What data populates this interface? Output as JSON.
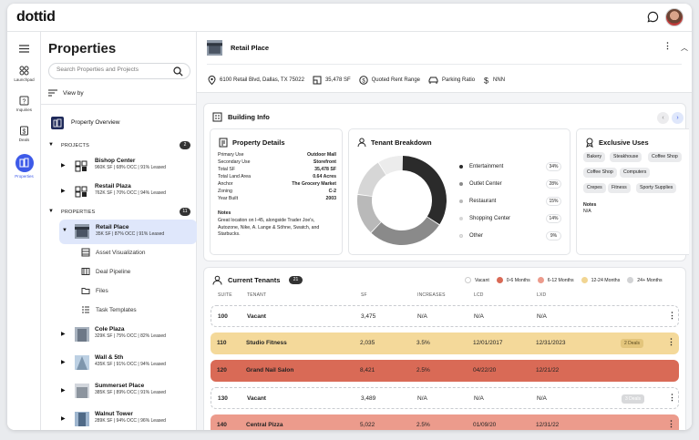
{
  "app": {
    "logo": "dottid"
  },
  "rail": {
    "items": [
      {
        "label": "Launchpad",
        "icon": "launchpad-icon"
      },
      {
        "label": "Inquiries",
        "icon": "inquiries-icon"
      },
      {
        "label": "Deals",
        "icon": "deals-icon"
      },
      {
        "label": "Properties",
        "icon": "properties-icon",
        "active": true
      }
    ]
  },
  "sidebar": {
    "title": "Properties",
    "search_placeholder": "Search Properties and Projects",
    "view_by": "View by",
    "overview": "Property Overview",
    "projects_label": "PROJECTS",
    "projects_count": "2",
    "projects": [
      {
        "name": "Bishop Center",
        "sub": "960K SF | 68% OCC | 91% Leased"
      },
      {
        "name": "Restail Plaza",
        "sub": "762K SF | 70% OCC | 94% Leased"
      }
    ],
    "properties_label": "PROPERTIES",
    "properties_count": "11",
    "selected": {
      "name": "Retail Place",
      "sub": "35K SF | 87% OCC | 91% Leased"
    },
    "subitems": [
      "Asset Visualization",
      "Deal Pipeline",
      "Files",
      "Task Templates"
    ],
    "properties": [
      {
        "name": "Cole Plaza",
        "sub": "329K SF | 75% OCC | 82% Leased"
      },
      {
        "name": "Wall & 5th",
        "sub": "435K SF | 91% OCC | 94% Leased"
      },
      {
        "name": "Summerset Place",
        "sub": "385K SF | 89% OCC | 91% Leased"
      },
      {
        "name": "Walnut Tower",
        "sub": "289K SF | 94% OCC | 96% Leased"
      }
    ]
  },
  "header": {
    "title": "Retail Place",
    "address": "6100 Retail Blvd, Dallas, TX 75022",
    "sf": "35,478 SF",
    "rent": "Quoted Rent Range",
    "parking": "Parking Ratio",
    "nnn": "NNN"
  },
  "building_info": {
    "title": "Building Info",
    "property_details": {
      "title": "Property Details",
      "rows": [
        {
          "k": "Primary Use",
          "v": "Outdoor Mall"
        },
        {
          "k": "Secondary Use",
          "v": "Storefront"
        },
        {
          "k": "Total SF",
          "v": "35,478 SF"
        },
        {
          "k": "Total Land Area",
          "v": "0.64 Acres"
        },
        {
          "k": "Anchor",
          "v": "The Grocery Market"
        },
        {
          "k": "Zoning",
          "v": "C-2"
        },
        {
          "k": "Year Built",
          "v": "2003"
        }
      ],
      "notes_label": "Notes",
      "notes": "Great location on I-45, alongside Trader Joe's, Autozone, Nike, A. Lange & Söhne, Swatch, and Starbucks."
    },
    "tenant_breakdown": {
      "title": "Tenant Breakdown",
      "rows": [
        {
          "name": "Entertainment",
          "pct": "34%",
          "value": 34,
          "color": "#2b2b2b"
        },
        {
          "name": "Outlet Center",
          "pct": "28%",
          "value": 28,
          "color": "#8a8a8a"
        },
        {
          "name": "Restaurant",
          "pct": "15%",
          "value": 15,
          "color": "#b9b9b9"
        },
        {
          "name": "Shopping Center",
          "pct": "14%",
          "value": 14,
          "color": "#d6d6d6"
        },
        {
          "name": "Other",
          "pct": "9%",
          "value": 9,
          "color": "#ececec"
        }
      ]
    },
    "exclusive_uses": {
      "title": "Exclusive Uses",
      "tags": [
        "Bakery",
        "Steakhouse",
        "Coffee Shop",
        "Coffee Shop",
        "Computers",
        "Crepes",
        "Fitness",
        "Sporty Supplies"
      ],
      "notes_label": "Notes",
      "notes": "N/A"
    }
  },
  "tenants": {
    "title": "Current Tenants",
    "count": "21",
    "legend": [
      {
        "label": "Vacant",
        "color": "#ffffff"
      },
      {
        "label": "0-6 Months",
        "color": "#d96a56"
      },
      {
        "label": "6-12 Months",
        "color": "#ec9b8c"
      },
      {
        "label": "12-24 Months",
        "color": "#f1d592"
      },
      {
        "label": "24+ Months",
        "color": "#d2d3d5"
      }
    ],
    "columns": [
      "SUITE",
      "TENANT",
      "SF",
      "INCREASES",
      "LCD",
      "LXD"
    ],
    "rows": [
      {
        "suite": "100",
        "tenant": "Vacant",
        "sf": "3,475",
        "inc": "N/A",
        "lcd": "N/A",
        "lxd": "N/A",
        "deals": "",
        "bg": "#ffffff",
        "border": "dashed"
      },
      {
        "suite": "110",
        "tenant": "Studio Fitness",
        "sf": "2,035",
        "inc": "3.5%",
        "lcd": "12/01/2017",
        "lxd": "12/31/2023",
        "deals": "2 Deals",
        "bg": "#f4d99a",
        "border": "none"
      },
      {
        "suite": "120",
        "tenant": "Grand Nail Salon",
        "sf": "8,421",
        "inc": "2.5%",
        "lcd": "04/22/20",
        "lxd": "12/21/22",
        "deals": "",
        "bg": "#d96a56",
        "border": "none"
      },
      {
        "suite": "130",
        "tenant": "Vacant",
        "sf": "3,489",
        "inc": "N/A",
        "lcd": "N/A",
        "lxd": "N/A",
        "deals": "3 Deals",
        "bg": "#ffffff",
        "border": "dashed"
      },
      {
        "suite": "140",
        "tenant": "Central Pizza",
        "sf": "5,022",
        "inc": "2.5%",
        "lcd": "01/09/20",
        "lxd": "12/31/22",
        "deals": "",
        "bg": "#ec9b8c",
        "border": "none"
      }
    ]
  }
}
